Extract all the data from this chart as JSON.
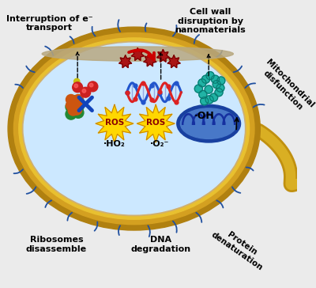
{
  "bg_color": "#ebebeb",
  "cell_outer_color": "#c8a020",
  "cell_mid_color": "#e8c840",
  "cell_inner_color": "#cce8ff",
  "membrane_color": "#c8b090",
  "flagellum_color": "#c8a020",
  "annotations": {
    "cell_wall_disruption": "Cell wall\ndisruption by\nnanomaterials",
    "interruption": "Interruption of e⁻\ntransport",
    "mitochondrial": "Mitochondrial\ndisfunction",
    "ribosomes": "Ribosomes\ndisassemble",
    "dna": "DNA\ndegradation",
    "protein": "Protein\ndenaturation",
    "oh": "·OH",
    "ho2": "·HO₂",
    "o2": "·O₂⁻"
  },
  "ros_color": "#FFD700",
  "ros_text_color": "#8B0000",
  "mitochondria_outer": "#2050a0",
  "mitochondria_inner": "#5080c8",
  "dna_blue": "#2255cc",
  "dna_red": "#dd2222",
  "nano_teal": "#18b0a0",
  "ribosome_green": "#228833",
  "ribosome_orange": "#cc5510",
  "cilia_color": "#2050a0",
  "nano_dark_red": "#991111",
  "x_color": "#1144bb"
}
